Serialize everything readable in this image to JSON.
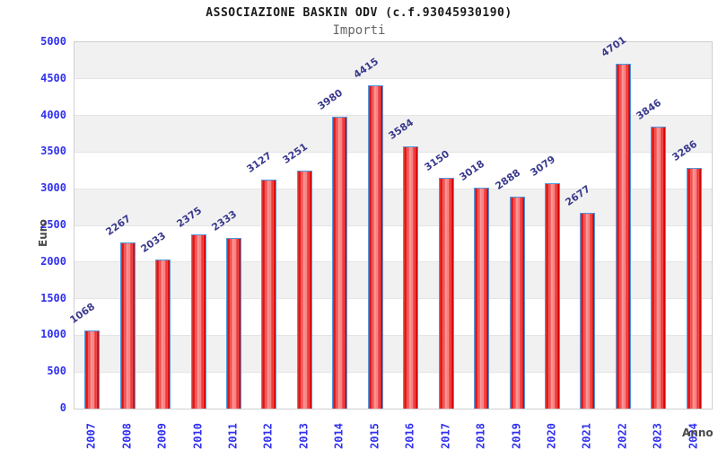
{
  "header": {
    "title": "ASSOCIAZIONE BASKIN ODV (c.f.93045930190)",
    "subtitle": "Importi"
  },
  "chart_data": {
    "type": "bar",
    "title": "ASSOCIAZIONE BASKIN ODV (c.f.93045930190)",
    "subtitle": "Importi",
    "xlabel": "Anno",
    "ylabel": "Euro",
    "categories": [
      "2007",
      "2008",
      "2009",
      "2010",
      "2011",
      "2012",
      "2013",
      "2014",
      "2015",
      "2016",
      "2017",
      "2018",
      "2019",
      "2020",
      "2021",
      "2022",
      "2023",
      "2024"
    ],
    "values": [
      1068,
      2267,
      2033,
      2375,
      2333,
      3127,
      3251,
      3980,
      4415,
      3584,
      3150,
      3018,
      2888,
      3079,
      2677,
      4701,
      3846,
      3286
    ],
    "ylim": [
      0,
      5000
    ],
    "ytick_step": 500,
    "grid": "alternating horizontal bands, gray top band",
    "legend": "none",
    "bar_label_rotation_deg": -35,
    "x_label_rotation_deg": -90,
    "colors": {
      "bar_fill_edge": "#c40505",
      "bar_fill_center": "#f99090",
      "bar_border": "#4f99e0",
      "value_label": "#3a3a8e",
      "tick_label": "#3030f0",
      "axis_title": "#4a4a4a",
      "band_gray": "#f1f1f1",
      "band_white": "#ffffff",
      "plot_border": "#cfcfcf",
      "title": "#1a1a1a",
      "subtitle": "#666666"
    }
  }
}
